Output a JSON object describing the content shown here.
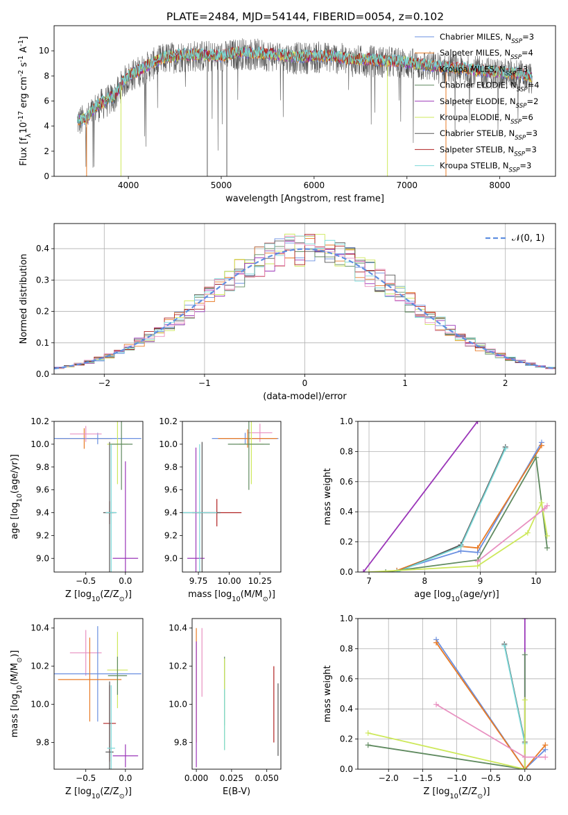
{
  "colors": {
    "miles_chabrier": "#6a8fe0",
    "miles_salpeter": "#e87a25",
    "miles_kroupa": "#5f8a5f",
    "elodie_chabrier": "#5f8a5f",
    "elodie_salpeter": "#9a35b8",
    "elodie_kroupa": "#cde85a",
    "stelib_chabrier": "#555555",
    "stelib_salpeter": "#b02020",
    "stelib_kroupa": "#7ad8d8",
    "pink": "#e890c0",
    "gaussian": "#5f8fe0"
  },
  "chart_data": [
    {
      "type": "line",
      "title": "PLATE=2484, MJD=54144, FIBERID=0054, z=0.102",
      "xlabel": "wavelength [Angstrom, rest frame]",
      "ylabel": "Flux [f$_{λ}$10$^{-17}$ erg cm$^{-2}$ s$^{-1}$ A$^{-1}$]",
      "xlim": [
        3200,
        8600
      ],
      "ylim": [
        0,
        12
      ],
      "xticks": [
        "4000",
        "5000",
        "6000",
        "7000",
        "8000"
      ],
      "yticks": [
        "0",
        "2",
        "4",
        "6",
        "8",
        "10"
      ],
      "legend_position": "right",
      "legend": [
        {
          "label": "Chabrier MILES, N",
          "sub": "SSP",
          "suffix": "=3",
          "color": "#6a8fe0"
        },
        {
          "label": "Salpeter MILES, N",
          "sub": "SSP",
          "suffix": "=4",
          "color": "#e87a25"
        },
        {
          "label": "Kroupa MILES, N",
          "sub": "SSP",
          "suffix": "=3",
          "color": "#5f8a5f"
        },
        {
          "label": "Chabrier ELODIE, N",
          "sub": "SSP",
          "suffix": "=4",
          "color": "#5f8a5f"
        },
        {
          "label": "Salpeter ELODIE, N",
          "sub": "SSP",
          "suffix": "=2",
          "color": "#9a35b8"
        },
        {
          "label": "Kroupa ELODIE, N",
          "sub": "SSP",
          "suffix": "=6",
          "color": "#cde85a"
        },
        {
          "label": "Chabrier STELIB, N",
          "sub": "SSP",
          "suffix": "=3",
          "color": "#555555"
        },
        {
          "label": "Salpeter STELIB, N",
          "sub": "SSP",
          "suffix": "=3",
          "color": "#b02020"
        },
        {
          "label": "Kroupa STELIB, N",
          "sub": "SSP",
          "suffix": "=3",
          "color": "#7ad8d8"
        }
      ],
      "spectrum_envelope": {
        "x": [
          3450,
          3550,
          3650,
          3750,
          3850,
          3950,
          4000,
          4100,
          4200,
          4300,
          4400,
          4600,
          4800,
          5000,
          5200,
          5400,
          5600,
          5800,
          6000,
          6200,
          6400,
          6600,
          6800,
          7000,
          7200,
          7400,
          7600,
          7800,
          8000,
          8200,
          8350
        ],
        "y": [
          4.5,
          4.6,
          5.6,
          6.0,
          6.4,
          7.6,
          8.0,
          8.4,
          8.8,
          9.2,
          9.5,
          9.7,
          9.7,
          9.6,
          9.9,
          9.8,
          9.7,
          9.5,
          9.6,
          9.6,
          9.3,
          9.3,
          9.2,
          9.1,
          8.9,
          8.7,
          8.6,
          8.4,
          8.3,
          8.2,
          7.9
        ]
      }
    },
    {
      "type": "bar",
      "xlabel": "(data-model)/error",
      "ylabel": "Normed distribution",
      "xlim": [
        -2.5,
        2.5
      ],
      "ylim": [
        0,
        0.48
      ],
      "xticks": [
        "−2",
        "−1",
        "0",
        "1",
        "2"
      ],
      "yticks": [
        "0.0",
        "0.1",
        "0.2",
        "0.3",
        "0.4"
      ],
      "grid": true,
      "legend_position": "top-right",
      "legend": [
        {
          "label": "𝒩(0, 1)",
          "color": "#5f8fe0",
          "style": "dashed"
        }
      ],
      "bin_edges_start": -2.5,
      "bin_width": 0.1,
      "reference_curve": "normal(0,1)"
    },
    {
      "type": "scatter",
      "xlabel": "Z [log$_{10}$(Z/Z$_{⊙}$)]",
      "ylabel": "age  [log$_{10}$(age/yr)]",
      "xlim": [
        -0.9,
        0.22
      ],
      "ylim": [
        8.88,
        10.2
      ],
      "xticks": [
        "−0.5",
        "0.0"
      ],
      "yticks": [
        "9.0",
        "9.2",
        "9.4",
        "9.6",
        "9.8",
        "10.0",
        "10.2"
      ],
      "points": [
        {
          "x": -0.52,
          "y": 10.05,
          "xerr": 0.35,
          "yerr": 0.09,
          "color": "#e87a25"
        },
        {
          "x": -0.35,
          "y": 10.05,
          "xerr": 0.55,
          "yerr": 0.05,
          "color": "#6a8fe0"
        },
        {
          "x": -0.5,
          "y": 10.09,
          "xerr": 0.2,
          "yerr": 0.07,
          "color": "#e890c0"
        },
        {
          "x": -0.1,
          "y": 10.0,
          "xerr": 0.13,
          "yerr": 0.35,
          "color": "#cde85a"
        },
        {
          "x": -0.05,
          "y": 10.0,
          "xerr": 0.14,
          "yerr": 0.4,
          "color": "#5f8a5f"
        },
        {
          "x": 0.0,
          "y": 9.0,
          "xerr": 0.16,
          "yerr": 0.85,
          "color": "#9a35b8"
        },
        {
          "x": -0.2,
          "y": 9.4,
          "xerr": 0.05,
          "yerr": 0.1,
          "color": "#b02020"
        },
        {
          "x": -0.2,
          "y": 9.4,
          "xerr": 0.08,
          "yerr": 0.62,
          "color": "#555555"
        },
        {
          "x": -0.18,
          "y": 9.4,
          "xerr": 0.07,
          "yerr": 0.6,
          "color": "#7ad8d8"
        }
      ]
    },
    {
      "type": "scatter",
      "xlabel": "mass [log$_{10}$(M/M$_{⊙}$)]",
      "ylabel": "",
      "xlim": [
        9.62,
        10.42
      ],
      "ylim": [
        8.88,
        10.2
      ],
      "xticks": [
        "9.75",
        "10.00",
        "10.25"
      ],
      "yticks": [
        "9.0",
        "9.2",
        "9.4",
        "9.6",
        "9.8",
        "10.0",
        "10.2"
      ],
      "points": [
        {
          "x": 10.25,
          "y": 10.1,
          "xerr": 0.1,
          "yerr": 0.08,
          "color": "#e890c0"
        },
        {
          "x": 10.13,
          "y": 10.05,
          "xerr": 0.27,
          "yerr": 0.05,
          "color": "#6a8fe0"
        },
        {
          "x": 10.15,
          "y": 10.05,
          "xerr": 0.24,
          "yerr": 0.08,
          "color": "#e87a25"
        },
        {
          "x": 10.18,
          "y": 10.0,
          "xerr": 0.1,
          "yerr": 0.35,
          "color": "#cde85a"
        },
        {
          "x": 10.16,
          "y": 10.0,
          "xerr": 0.17,
          "yerr": 0.4,
          "color": "#5f8a5f"
        },
        {
          "x": 9.73,
          "y": 9.0,
          "xerr": 0.07,
          "yerr": 0.97,
          "color": "#9a35b8"
        },
        {
          "x": 9.9,
          "y": 9.4,
          "xerr": 0.2,
          "yerr": 0.12,
          "color": "#b02020"
        },
        {
          "x": 9.78,
          "y": 9.4,
          "xerr": 0.15,
          "yerr": 0.62,
          "color": "#555555"
        },
        {
          "x": 9.76,
          "y": 9.4,
          "xerr": 0.14,
          "yerr": 0.6,
          "color": "#7ad8d8"
        }
      ]
    },
    {
      "type": "line",
      "xlabel": "age  [log$_{10}$(age/yr)]",
      "ylabel": "mass weight",
      "xlim": [
        6.8,
        10.35
      ],
      "ylim": [
        0,
        1
      ],
      "xticks": [
        "7",
        "8",
        "9",
        "10"
      ],
      "yticks": [
        "0.0",
        "0.2",
        "0.4",
        "0.6",
        "0.8",
        "1.0"
      ],
      "grid": true,
      "series": [
        {
          "color": "#9a35b8",
          "x": [
            6.9,
            8.95
          ],
          "y": [
            0.0,
            1.0
          ]
        },
        {
          "color": "#6a8fe0",
          "x": [
            7.5,
            8.65,
            8.95,
            10.1
          ],
          "y": [
            0.01,
            0.14,
            0.13,
            0.86
          ]
        },
        {
          "color": "#e87a25",
          "x": [
            7.5,
            8.65,
            8.95,
            10.1
          ],
          "y": [
            0.01,
            0.17,
            0.16,
            0.84
          ]
        },
        {
          "color": "#555555",
          "x": [
            7.5,
            8.65,
            9.45
          ],
          "y": [
            0.0,
            0.18,
            0.83
          ]
        },
        {
          "color": "#7ad8d8",
          "x": [
            7.5,
            8.65,
            9.45
          ],
          "y": [
            0.0,
            0.17,
            0.82
          ]
        },
        {
          "color": "#5f8a5f",
          "x": [
            7.3,
            8.95,
            10.0,
            10.2
          ],
          "y": [
            0.0,
            0.08,
            0.76,
            0.16
          ]
        },
        {
          "color": "#cde85a",
          "x": [
            7.0,
            8.95,
            9.85,
            10.1,
            10.2
          ],
          "y": [
            0.0,
            0.04,
            0.26,
            0.46,
            0.24
          ]
        },
        {
          "color": "#e890c0",
          "x": [
            8.95,
            10.15,
            10.2
          ],
          "y": [
            0.07,
            0.42,
            0.44
          ]
        }
      ]
    },
    {
      "type": "scatter",
      "xlabel": "Z [log$_{10}$(Z/Z$_{⊙}$)]",
      "ylabel": "mass [log$_{10}$(M/M$_{⊙}$)]",
      "xlim": [
        -0.9,
        0.22
      ],
      "ylim": [
        9.66,
        10.45
      ],
      "xticks": [
        "−0.5",
        "0.0"
      ],
      "yticks": [
        "9.8",
        "10.0",
        "10.2",
        "10.4"
      ],
      "points": [
        {
          "x": -0.5,
          "y": 10.27,
          "xerr": 0.2,
          "yerr": 0.12,
          "color": "#e890c0"
        },
        {
          "x": -0.35,
          "y": 10.16,
          "xerr": 0.55,
          "yerr": 0.25,
          "color": "#6a8fe0"
        },
        {
          "x": -0.45,
          "y": 10.13,
          "xerr": 0.4,
          "yerr": 0.22,
          "color": "#e87a25"
        },
        {
          "x": -0.1,
          "y": 10.18,
          "xerr": 0.13,
          "yerr": 0.2,
          "color": "#cde85a"
        },
        {
          "x": -0.1,
          "y": 10.15,
          "xerr": 0.12,
          "yerr": 0.1,
          "color": "#5f8a5f"
        },
        {
          "x": 0.0,
          "y": 9.73,
          "xerr": 0.16,
          "yerr": 0.06,
          "color": "#9a35b8"
        },
        {
          "x": -0.2,
          "y": 9.9,
          "xerr": 0.08,
          "yerr": 0.2,
          "color": "#b02020"
        },
        {
          "x": -0.2,
          "y": 9.75,
          "xerr": 0.05,
          "yerr": 0.37,
          "color": "#555555"
        },
        {
          "x": -0.18,
          "y": 9.77,
          "xerr": 0.05,
          "yerr": 0.33,
          "color": "#7ad8d8"
        }
      ]
    },
    {
      "type": "scatter",
      "xlabel": "E(B-V)",
      "ylabel": "",
      "xlim": [
        -0.003,
        0.06
      ],
      "ylim": [
        9.66,
        10.45
      ],
      "xticks": [
        "0.000",
        "0.025",
        "0.050"
      ],
      "yticks": [
        "9.8",
        "10.0",
        "10.2",
        "10.4"
      ],
      "points": [
        {
          "x": 0.0,
          "y": 10.1,
          "yerr": 0.3,
          "color": "#e87a25"
        },
        {
          "x": 0.0,
          "y": 10.0,
          "yerr": 0.33,
          "color": "#9a35b8"
        },
        {
          "x": 0.004,
          "y": 10.22,
          "yerr": 0.18,
          "color": "#e890c0"
        },
        {
          "x": 0.02,
          "y": 10.07,
          "yerr": 0.18,
          "color": "#5f8a5f"
        },
        {
          "x": 0.02,
          "y": 10.0,
          "yerr": 0.24,
          "color": "#cde85a"
        },
        {
          "x": 0.02,
          "y": 9.92,
          "yerr": 0.16,
          "color": "#7ad8d8"
        },
        {
          "x": 0.055,
          "y": 10.0,
          "yerr": 0.2,
          "color": "#b02020"
        },
        {
          "x": 0.058,
          "y": 9.92,
          "yerr": 0.19,
          "color": "#555555"
        }
      ]
    },
    {
      "type": "line",
      "xlabel": "Z [log$_{10}$(Z/Z$_{⊙}$)]",
      "ylabel": "mass weight",
      "xlim": [
        -2.45,
        0.45
      ],
      "ylim": [
        0,
        1
      ],
      "xticks": [
        "−2.0",
        "−1.5",
        "−1.0",
        "−0.5",
        "0.0"
      ],
      "yticks": [
        "0.0",
        "0.2",
        "0.4",
        "0.6",
        "0.8",
        "1.0"
      ],
      "grid": true,
      "series": [
        {
          "color": "#9a35b8",
          "x": [
            0.0,
            0.0
          ],
          "y": [
            0.0,
            1.0
          ]
        },
        {
          "color": "#6a8fe0",
          "x": [
            -1.3,
            0.0,
            0.3
          ],
          "y": [
            0.86,
            0.0,
            0.13
          ]
        },
        {
          "color": "#e87a25",
          "x": [
            -1.3,
            0.0,
            0.3
          ],
          "y": [
            0.84,
            0.0,
            0.16
          ]
        },
        {
          "color": "#555555",
          "x": [
            -0.3,
            0.0
          ],
          "y": [
            0.83,
            0.18
          ]
        },
        {
          "color": "#7ad8d8",
          "x": [
            -0.3,
            0.0
          ],
          "y": [
            0.82,
            0.17
          ]
        },
        {
          "color": "#5f8a5f",
          "x": [
            -2.3,
            0.0,
            0.0
          ],
          "y": [
            0.16,
            0.0,
            0.76
          ]
        },
        {
          "color": "#cde85a",
          "x": [
            -2.3,
            0.0,
            0.0
          ],
          "y": [
            0.24,
            0.0,
            0.46
          ]
        },
        {
          "color": "#e890c0",
          "x": [
            -1.3,
            0.0,
            0.3
          ],
          "y": [
            0.43,
            0.08,
            0.08
          ]
        }
      ]
    }
  ]
}
